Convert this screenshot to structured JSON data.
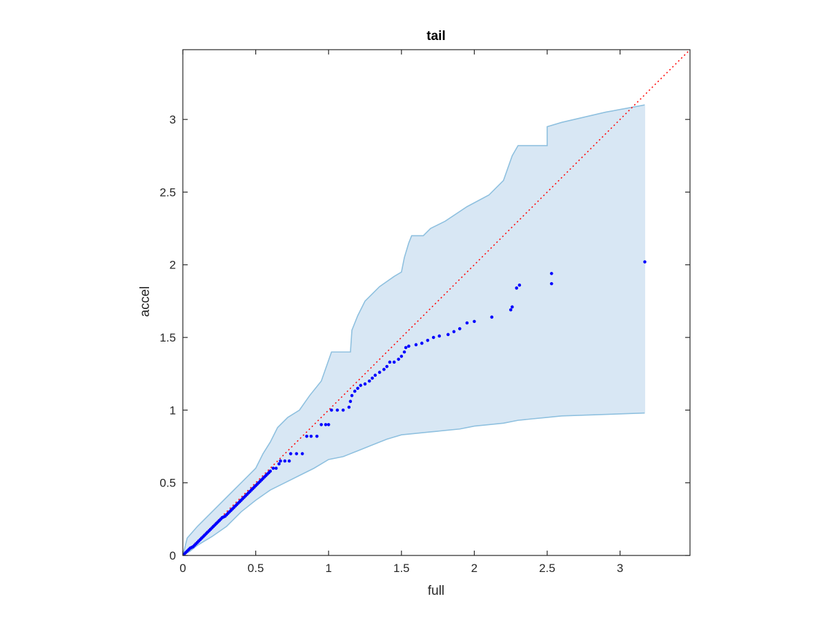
{
  "chart_data": {
    "type": "scatter",
    "title": "tail",
    "xlabel": "full",
    "ylabel": "accel",
    "xlim": [
      0,
      3.48
    ],
    "ylim": [
      0,
      3.48
    ],
    "xticks": [
      "0",
      "0.5",
      "1",
      "1.5",
      "2",
      "2.5",
      "3"
    ],
    "yticks": [
      "0",
      "0.5",
      "1",
      "1.5",
      "2",
      "2.5",
      "3"
    ],
    "xtick_values": [
      0,
      0.5,
      1,
      1.5,
      2,
      2.5,
      3
    ],
    "ytick_values": [
      0,
      0.5,
      1,
      1.5,
      2,
      2.5,
      3
    ],
    "grid": false,
    "colors": {
      "points": "#0000ff",
      "band_fill": "#d8e7f4",
      "band_edge": "#8ec0df",
      "reference_line": "#ff0000",
      "axes": "#262626"
    },
    "reference_line": {
      "style": "dotted",
      "from": [
        0,
        0
      ],
      "to": [
        3.48,
        3.48
      ]
    },
    "band": {
      "upper": [
        [
          0,
          0
        ],
        [
          0.03,
          0.12
        ],
        [
          0.1,
          0.2
        ],
        [
          0.2,
          0.3
        ],
        [
          0.3,
          0.4
        ],
        [
          0.4,
          0.5
        ],
        [
          0.45,
          0.55
        ],
        [
          0.5,
          0.6
        ],
        [
          0.55,
          0.7
        ],
        [
          0.6,
          0.78
        ],
        [
          0.65,
          0.88
        ],
        [
          0.72,
          0.95
        ],
        [
          0.8,
          1.0
        ],
        [
          0.87,
          1.1
        ],
        [
          0.95,
          1.2
        ],
        [
          1.02,
          1.4
        ],
        [
          1.15,
          1.4
        ],
        [
          1.16,
          1.55
        ],
        [
          1.2,
          1.65
        ],
        [
          1.25,
          1.75
        ],
        [
          1.35,
          1.85
        ],
        [
          1.45,
          1.92
        ],
        [
          1.5,
          1.95
        ],
        [
          1.52,
          2.05
        ],
        [
          1.55,
          2.15
        ],
        [
          1.57,
          2.2
        ],
        [
          1.65,
          2.2
        ],
        [
          1.7,
          2.25
        ],
        [
          1.8,
          2.3
        ],
        [
          1.95,
          2.4
        ],
        [
          2.1,
          2.48
        ],
        [
          2.2,
          2.58
        ],
        [
          2.26,
          2.75
        ],
        [
          2.3,
          2.82
        ],
        [
          2.5,
          2.82
        ],
        [
          2.5,
          2.95
        ],
        [
          2.6,
          2.98
        ],
        [
          2.9,
          3.05
        ],
        [
          3.17,
          3.1
        ]
      ],
      "lower": [
        [
          0,
          0
        ],
        [
          0.05,
          0.03
        ],
        [
          0.1,
          0.07
        ],
        [
          0.2,
          0.13
        ],
        [
          0.3,
          0.2
        ],
        [
          0.4,
          0.3
        ],
        [
          0.5,
          0.38
        ],
        [
          0.6,
          0.45
        ],
        [
          0.7,
          0.5
        ],
        [
          0.8,
          0.55
        ],
        [
          0.9,
          0.6
        ],
        [
          1.0,
          0.66
        ],
        [
          1.1,
          0.68
        ],
        [
          1.15,
          0.7
        ],
        [
          1.2,
          0.72
        ],
        [
          1.3,
          0.76
        ],
        [
          1.4,
          0.8
        ],
        [
          1.5,
          0.83
        ],
        [
          1.6,
          0.84
        ],
        [
          1.7,
          0.85
        ],
        [
          1.8,
          0.86
        ],
        [
          1.9,
          0.87
        ],
        [
          2.0,
          0.89
        ],
        [
          2.1,
          0.9
        ],
        [
          2.2,
          0.91
        ],
        [
          2.3,
          0.93
        ],
        [
          2.4,
          0.94
        ],
        [
          2.5,
          0.95
        ],
        [
          2.6,
          0.96
        ],
        [
          3.17,
          0.98
        ]
      ]
    },
    "points": [
      [
        0.01,
        0.01
      ],
      [
        0.02,
        0.02
      ],
      [
        0.03,
        0.03
      ],
      [
        0.04,
        0.04
      ],
      [
        0.05,
        0.05
      ],
      [
        0.06,
        0.055
      ],
      [
        0.07,
        0.06
      ],
      [
        0.08,
        0.07
      ],
      [
        0.09,
        0.08
      ],
      [
        0.1,
        0.09
      ],
      [
        0.11,
        0.1
      ],
      [
        0.12,
        0.11
      ],
      [
        0.13,
        0.12
      ],
      [
        0.14,
        0.13
      ],
      [
        0.15,
        0.14
      ],
      [
        0.16,
        0.15
      ],
      [
        0.17,
        0.16
      ],
      [
        0.18,
        0.17
      ],
      [
        0.19,
        0.18
      ],
      [
        0.2,
        0.19
      ],
      [
        0.21,
        0.2
      ],
      [
        0.22,
        0.21
      ],
      [
        0.23,
        0.22
      ],
      [
        0.24,
        0.23
      ],
      [
        0.25,
        0.24
      ],
      [
        0.26,
        0.25
      ],
      [
        0.27,
        0.26
      ],
      [
        0.28,
        0.265
      ],
      [
        0.29,
        0.27
      ],
      [
        0.3,
        0.28
      ],
      [
        0.31,
        0.29
      ],
      [
        0.32,
        0.3
      ],
      [
        0.33,
        0.31
      ],
      [
        0.34,
        0.32
      ],
      [
        0.35,
        0.33
      ],
      [
        0.36,
        0.34
      ],
      [
        0.37,
        0.35
      ],
      [
        0.38,
        0.36
      ],
      [
        0.39,
        0.37
      ],
      [
        0.4,
        0.38
      ],
      [
        0.41,
        0.39
      ],
      [
        0.42,
        0.4
      ],
      [
        0.43,
        0.41
      ],
      [
        0.44,
        0.42
      ],
      [
        0.45,
        0.43
      ],
      [
        0.46,
        0.44
      ],
      [
        0.47,
        0.45
      ],
      [
        0.48,
        0.46
      ],
      [
        0.49,
        0.47
      ],
      [
        0.5,
        0.48
      ],
      [
        0.51,
        0.49
      ],
      [
        0.52,
        0.5
      ],
      [
        0.53,
        0.51
      ],
      [
        0.54,
        0.52
      ],
      [
        0.55,
        0.53
      ],
      [
        0.56,
        0.54
      ],
      [
        0.57,
        0.55
      ],
      [
        0.58,
        0.56
      ],
      [
        0.59,
        0.57
      ],
      [
        0.6,
        0.58
      ],
      [
        0.62,
        0.6
      ],
      [
        0.64,
        0.6
      ],
      [
        0.66,
        0.63
      ],
      [
        0.67,
        0.65
      ],
      [
        0.7,
        0.65
      ],
      [
        0.73,
        0.65
      ],
      [
        0.74,
        0.7
      ],
      [
        0.78,
        0.7
      ],
      [
        0.82,
        0.7
      ],
      [
        0.85,
        0.82
      ],
      [
        0.88,
        0.82
      ],
      [
        0.92,
        0.82
      ],
      [
        0.95,
        0.9
      ],
      [
        0.98,
        0.9
      ],
      [
        1.0,
        0.9
      ],
      [
        1.02,
        1.0
      ],
      [
        1.06,
        1.0
      ],
      [
        1.1,
        1.0
      ],
      [
        1.14,
        1.02
      ],
      [
        1.15,
        1.06
      ],
      [
        1.16,
        1.1
      ],
      [
        1.18,
        1.13
      ],
      [
        1.2,
        1.15
      ],
      [
        1.22,
        1.17
      ],
      [
        1.25,
        1.18
      ],
      [
        1.28,
        1.2
      ],
      [
        1.3,
        1.22
      ],
      [
        1.32,
        1.24
      ],
      [
        1.35,
        1.26
      ],
      [
        1.38,
        1.28
      ],
      [
        1.4,
        1.3
      ],
      [
        1.42,
        1.33
      ],
      [
        1.45,
        1.33
      ],
      [
        1.48,
        1.35
      ],
      [
        1.5,
        1.37
      ],
      [
        1.52,
        1.4
      ],
      [
        1.53,
        1.43
      ],
      [
        1.55,
        1.44
      ],
      [
        1.6,
        1.45
      ],
      [
        1.64,
        1.46
      ],
      [
        1.68,
        1.48
      ],
      [
        1.72,
        1.5
      ],
      [
        1.76,
        1.51
      ],
      [
        1.82,
        1.52
      ],
      [
        1.86,
        1.54
      ],
      [
        1.9,
        1.56
      ],
      [
        1.95,
        1.6
      ],
      [
        2.0,
        1.61
      ],
      [
        2.12,
        1.64
      ],
      [
        2.25,
        1.69
      ],
      [
        2.26,
        1.71
      ],
      [
        2.29,
        1.84
      ],
      [
        2.31,
        1.86
      ],
      [
        2.53,
        1.87
      ],
      [
        2.53,
        1.94
      ],
      [
        3.17,
        2.02
      ]
    ]
  }
}
